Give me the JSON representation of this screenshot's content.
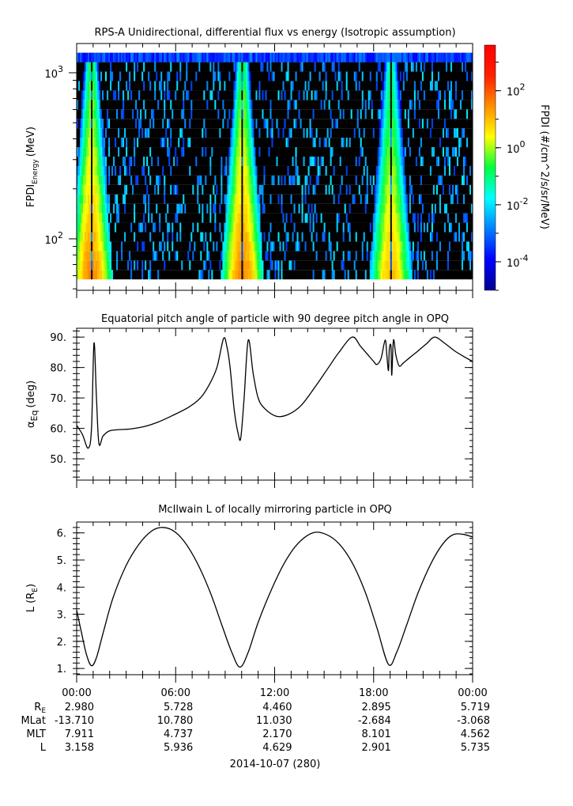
{
  "chart_data": [
    {
      "type": "heatmap",
      "title": "RPS-A Unidirectional, differential flux vs energy (Isotropic assumption)",
      "ylabel": "FPDI",
      "ylabel_sub": "Energy",
      "ylabel_unit": "(MeV)",
      "yscale": "log",
      "ylim": [
        49,
        1500
      ],
      "yticks": [
        {
          "value": 100,
          "base": "10",
          "exp": "2"
        },
        {
          "value": 1000,
          "base": "10",
          "exp": "3"
        }
      ],
      "energy_range_mev": [
        57,
        1320
      ],
      "energy_channels": 24,
      "xlim_hours": [
        0,
        24
      ],
      "colorbar": {
        "label": "FPDI (#/cm^2/s/sr/MeV)",
        "scale": "log",
        "range_log10": [
          -5,
          3.6
        ],
        "ticks": [
          {
            "exp": "2",
            "log": 2
          },
          {
            "exp": "0",
            "log": 0
          },
          {
            "exp": "-2",
            "log": -2
          },
          {
            "exp": "-4",
            "log": -4
          }
        ]
      },
      "flux_bands": [
        {
          "center_hour": 0.85,
          "peak_log_flux": 1.5
        },
        {
          "center_hour": 10.0,
          "peak_log_flux": 1.5
        },
        {
          "center_hour": 19.0,
          "peak_log_flux": 1.0
        }
      ],
      "background_log_flux": -3
    },
    {
      "type": "line",
      "title": "Equatorial pitch angle of particle with 90 degree pitch angle in OPQ",
      "ylabel": "α",
      "ylabel_sub": "Eq",
      "ylabel_unit": "(deg)",
      "ylim": [
        43,
        92.9
      ],
      "yticks": [
        {
          "value": 90,
          "label": "90."
        },
        {
          "value": 80,
          "label": "80."
        },
        {
          "value": 70,
          "label": "70."
        },
        {
          "value": 60,
          "label": "60."
        },
        {
          "value": 50,
          "label": "50."
        }
      ],
      "x_hours": [
        0,
        0.35,
        0.7,
        0.9,
        1.05,
        1.2,
        1.35,
        1.6,
        2.0,
        2.6,
        3.25,
        4.1,
        4.9,
        5.8,
        6.8,
        7.5,
        8.0,
        8.5,
        8.9,
        9.1,
        9.3,
        9.55,
        9.8,
        9.95,
        10.15,
        10.4,
        10.7,
        11.0,
        11.4,
        12.1,
        12.8,
        13.6,
        14.5,
        15.2,
        15.9,
        16.7,
        17.2,
        17.6,
        18.0,
        18.2,
        18.45,
        18.7,
        18.8,
        18.9,
        18.95,
        19.05,
        19.1,
        19.2,
        19.35,
        19.55,
        19.8,
        20.2,
        20.7,
        21.2,
        21.7,
        22.3,
        22.9,
        23.5,
        24
      ],
      "y_deg": [
        61,
        58,
        53.5,
        60,
        88,
        70,
        55,
        57.5,
        59.2,
        59.6,
        59.8,
        60.6,
        62,
        64.2,
        67,
        70,
        74,
        80,
        89.5,
        87,
        80,
        66,
        58,
        57,
        70,
        89,
        78,
        70,
        66.5,
        64,
        64.5,
        67.5,
        74,
        79.5,
        85,
        90,
        87,
        84.5,
        82,
        81,
        83,
        89,
        84,
        79,
        86,
        87,
        77.5,
        89,
        84,
        80.5,
        81.5,
        83.3,
        85.5,
        87.8,
        90,
        88,
        85.5,
        83.5,
        82
      ]
    },
    {
      "type": "line",
      "title": "McIlwain L of locally mirroring particle in OPQ",
      "ylabel": "L",
      "ylabel_unit": "(R",
      "ylabel_sub": "E",
      "ylim": [
        0.77,
        6.4
      ],
      "yticks": [
        {
          "value": 6,
          "label": "6."
        },
        {
          "value": 5,
          "label": "5."
        },
        {
          "value": 4,
          "label": "4."
        },
        {
          "value": 3,
          "label": "3."
        },
        {
          "value": 2,
          "label": "2."
        },
        {
          "value": 1,
          "label": "1."
        }
      ],
      "x_hours": [
        0,
        0.3,
        0.6,
        0.9,
        1.2,
        1.6,
        2.2,
        3.0,
        3.8,
        4.5,
        5.1,
        5.8,
        6.5,
        7.3,
        8.1,
        8.8,
        9.4,
        9.9,
        10.4,
        11.0,
        11.8,
        12.6,
        13.4,
        14.3,
        15.1,
        15.9,
        16.7,
        17.5,
        18.2,
        18.9,
        19.4,
        20.0,
        20.7,
        21.5,
        22.2,
        22.8,
        23.4,
        24
      ],
      "y_L": [
        3.15,
        2.3,
        1.5,
        1.1,
        1.4,
        2.3,
        3.6,
        4.8,
        5.6,
        6.05,
        6.2,
        6.1,
        5.7,
        4.9,
        3.8,
        2.6,
        1.6,
        1.05,
        1.6,
        2.7,
        3.9,
        4.9,
        5.6,
        6.0,
        5.95,
        5.6,
        4.9,
        3.8,
        2.5,
        1.15,
        1.6,
        2.6,
        3.8,
        4.9,
        5.6,
        5.93,
        5.95,
        5.85
      ]
    }
  ],
  "x_axis": {
    "tick_labels": [
      "00:00",
      "06:00",
      "12:00",
      "18:00",
      "00:00"
    ],
    "date_label": "2014-10-07 (280)"
  },
  "ephemeris": {
    "rows": [
      {
        "label": "R",
        "label_sub": "E",
        "values": [
          "2.980",
          "5.728",
          "4.460",
          "2.895",
          "5.719"
        ]
      },
      {
        "label": "MLat",
        "values": [
          "-13.710",
          "10.780",
          "11.030",
          "-2.684",
          "-3.068"
        ]
      },
      {
        "label": "MLT",
        "values": [
          "7.911",
          "4.737",
          "2.170",
          "8.101",
          "4.562"
        ]
      },
      {
        "label": "L",
        "values": [
          "3.158",
          "5.936",
          "4.629",
          "2.901",
          "5.735"
        ]
      }
    ]
  }
}
